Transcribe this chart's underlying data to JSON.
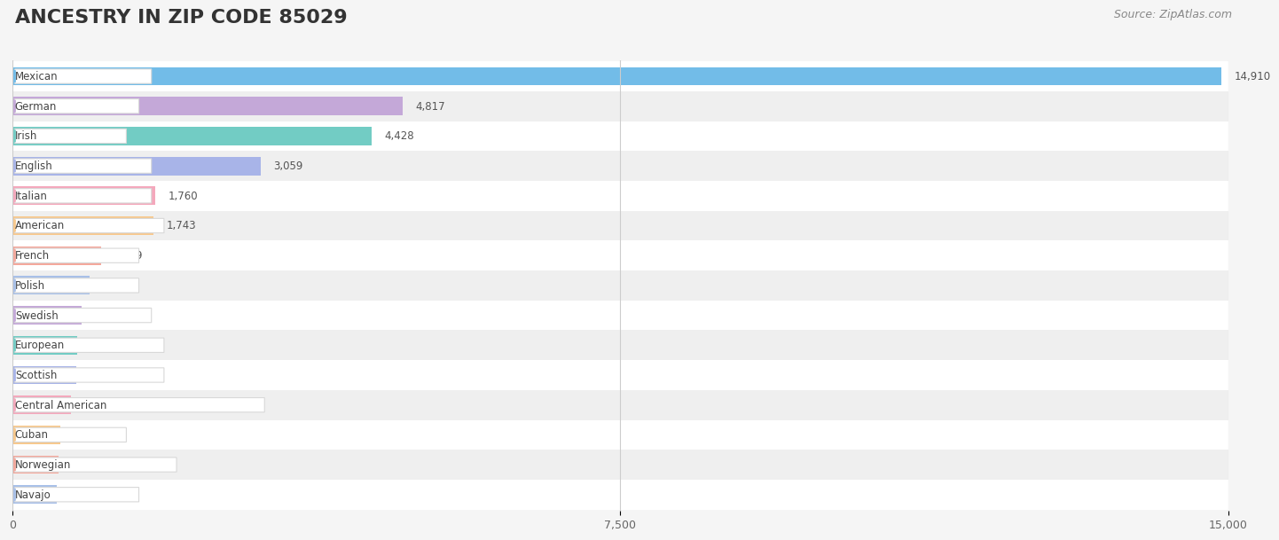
{
  "title": "ANCESTRY IN ZIP CODE 85029",
  "source": "Source: ZipAtlas.com",
  "categories": [
    "Mexican",
    "German",
    "Irish",
    "English",
    "Italian",
    "American",
    "French",
    "Polish",
    "Swedish",
    "European",
    "Scottish",
    "Central American",
    "Cuban",
    "Norwegian",
    "Navajo"
  ],
  "values": [
    14910,
    4817,
    4428,
    3059,
    1760,
    1743,
    1089,
    952,
    855,
    795,
    785,
    721,
    595,
    567,
    545
  ],
  "bar_colors": [
    "#72bce8",
    "#c4a8d8",
    "#72ccc4",
    "#a8b4e8",
    "#f4a8bc",
    "#f8c88c",
    "#f4a89c",
    "#a8c0e8",
    "#c4a8d8",
    "#72ccc4",
    "#a8b4e8",
    "#f4a8bc",
    "#f8c88c",
    "#f4a89c",
    "#a8c0e8"
  ],
  "xlim": [
    0,
    15000
  ],
  "xticks": [
    0,
    7500,
    15000
  ],
  "background_color": "#f5f5f5",
  "title_fontsize": 16,
  "source_fontsize": 9,
  "bar_height": 0.62,
  "row_colors": [
    "#ffffff",
    "#efefef"
  ]
}
